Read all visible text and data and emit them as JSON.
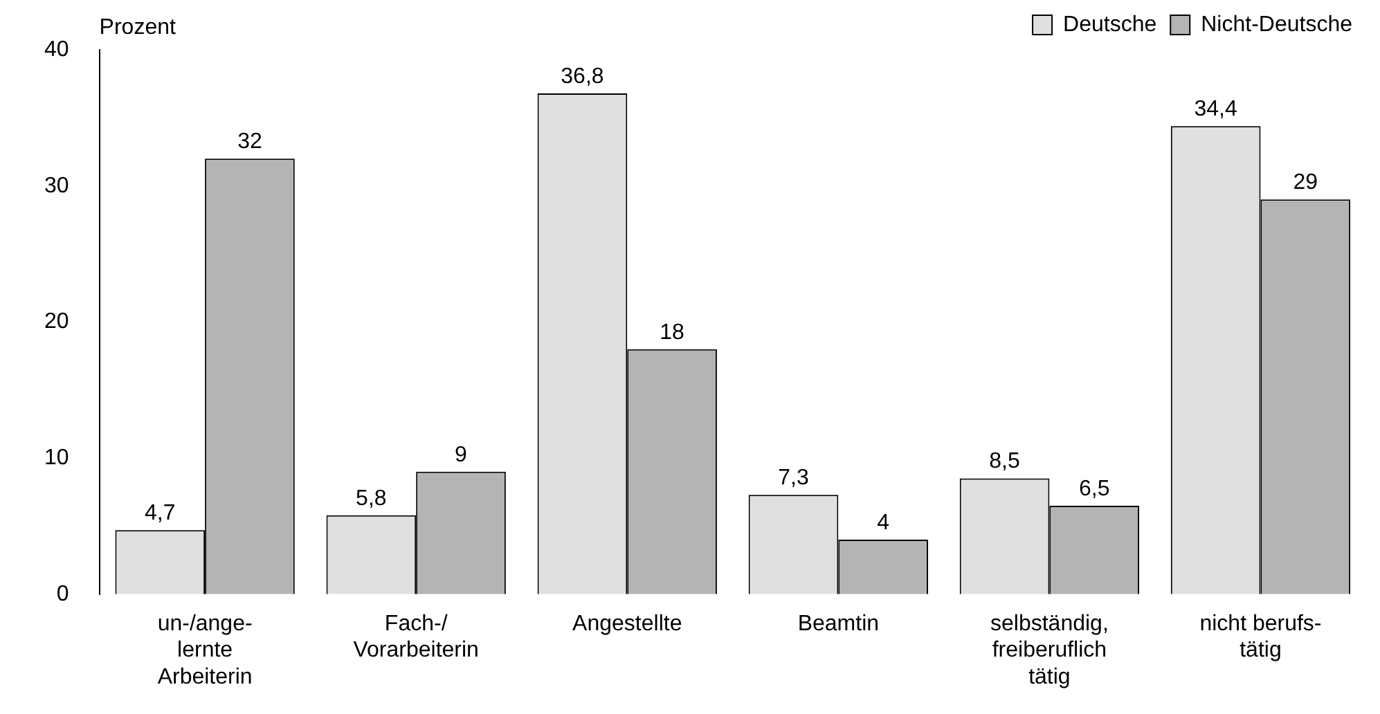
{
  "chart_data": {
    "type": "bar",
    "ylabel": "Prozent",
    "categories": [
      "un-/ange-\nlernte\nArbeiterin",
      "Fach-/\nVorarbeiterin",
      "Angestellte",
      "Beamtin",
      "selbständig,\nfreiberuflich\ntätig",
      "nicht berufs-\ntätig"
    ],
    "series": [
      {
        "name": "Deutsche",
        "color": "#e0e0e0",
        "values": [
          4.7,
          5.8,
          36.8,
          7.3,
          8.5,
          34.4
        ],
        "value_labels": [
          "4,7",
          "5,8",
          "36,8",
          "7,3",
          "8,5",
          "34,4"
        ]
      },
      {
        "name": "Nicht-Deutsche",
        "color": "#b4b4b4",
        "values": [
          32,
          9,
          18,
          4,
          6.5,
          29
        ],
        "value_labels": [
          "32",
          "9",
          "18",
          "4",
          "6,5",
          "29"
        ]
      }
    ],
    "ylim": [
      0,
      40
    ],
    "yticks": [
      0,
      10,
      20,
      30,
      40
    ],
    "grid": false,
    "legend": "top right"
  }
}
